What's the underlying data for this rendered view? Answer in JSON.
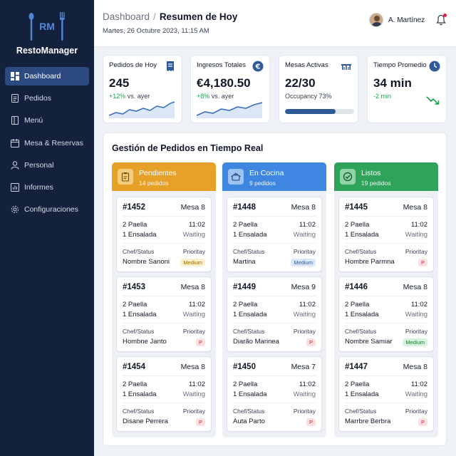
{
  "app": {
    "logo_initials": "RM",
    "name": "RestoManager"
  },
  "sidebar": {
    "items": [
      {
        "label": "Dashboard",
        "icon": "dashboard-icon",
        "active": true
      },
      {
        "label": "Pedidos",
        "icon": "orders-icon",
        "active": false
      },
      {
        "label": "Menú",
        "icon": "menu-book-icon",
        "active": false
      },
      {
        "label": "Mesa & Reservas",
        "icon": "calendar-icon",
        "active": false
      },
      {
        "label": "Personal",
        "icon": "user-icon",
        "active": false
      },
      {
        "label": "Informes",
        "icon": "chart-icon",
        "active": false
      },
      {
        "label": "Configuraciones",
        "icon": "gear-icon",
        "active": false
      }
    ]
  },
  "header": {
    "breadcrumb_root": "Dashboard",
    "breadcrumb_sep": "/",
    "breadcrumb_current": "Resumen de Hoy",
    "date": "Martes, 26 Octubre 2023, 11:15 AM",
    "user_name": "A. Martínez"
  },
  "kpis": {
    "orders": {
      "title": "Pedidos de Hoy",
      "value": "245",
      "delta": "+12%",
      "delta_note": "vs. ayer"
    },
    "revenue": {
      "title": "Ingresos Totales",
      "value": "€4,180.50",
      "delta": "+8%",
      "delta_note": "vs. ayer"
    },
    "tables": {
      "title": "Mesas Activas",
      "value": "22/30",
      "note": "Occupancy 73%",
      "occupancy": 0.73
    },
    "avgtime": {
      "title": "Tiempo Promedio",
      "value": "34 min",
      "delta": "-2 min"
    }
  },
  "orders_panel": {
    "title": "Gestión de Pedidos en Tiempo Real",
    "chef_label": "Chef/Status",
    "priority_label": "Prioritay",
    "columns": [
      {
        "name": "Pendientes",
        "count": "14 pedidos",
        "color": "#e8a128",
        "cards": [
          {
            "id": "#1452",
            "mesa": "Mesa 8",
            "item1": "2 Paella",
            "item2": "1 Ensalada",
            "time": "11:02",
            "status": "Waiting",
            "chef": "Nombre Sanoni",
            "badge": "Medium",
            "badge_class": "b-medium-y"
          },
          {
            "id": "#1453",
            "mesa": "Mesa 8",
            "item1": "2 Paella",
            "item2": "1 Ensalada",
            "time": "11:02",
            "status": "Waiting",
            "chef": "Hombne Janto",
            "badge": "P",
            "badge_class": "b-p"
          },
          {
            "id": "#1454",
            "mesa": "Mesa 8",
            "item1": "2 Paella",
            "item2": "1 Ensalada",
            "time": "11:02",
            "status": "Waiting",
            "chef": "Disane Perrera",
            "badge": "P",
            "badge_class": "b-p"
          }
        ]
      },
      {
        "name": "En Cocina",
        "count": "9 pedidos",
        "color": "#3f86e0",
        "cards": [
          {
            "id": "#1448",
            "mesa": "Mesa 8",
            "item1": "2 Paella",
            "item2": "1 Ensalada",
            "time": "11:02",
            "status": "Waiting",
            "chef": "Martina",
            "badge": "Medium",
            "badge_class": "b-medium-b"
          },
          {
            "id": "#1449",
            "mesa": "Mesa 9",
            "item1": "2 Paella",
            "item2": "1 Ensalada",
            "time": "11:02",
            "status": "Waiting",
            "chef": "Diarão Marinea",
            "badge": "P",
            "badge_class": "b-p"
          },
          {
            "id": "#1450",
            "mesa": "Mesa 7",
            "item1": "2 Paella",
            "item2": "1 Ensalada",
            "time": "11:02",
            "status": "Waiting",
            "chef": "Auta Parto",
            "badge": "P",
            "badge_class": "b-p"
          }
        ]
      },
      {
        "name": "Listos",
        "count": "19 pedidos",
        "color": "#2fa35a",
        "cards": [
          {
            "id": "#1445",
            "mesa": "Mesa 8",
            "item1": "2 Paella",
            "item2": "1 Ensalada",
            "time": "11:02",
            "status": "Waiting",
            "chef": "Hombre Parmna",
            "badge": "P",
            "badge_class": "b-p"
          },
          {
            "id": "#1446",
            "mesa": "Mesa 8",
            "item1": "2 Paella",
            "item2": "1 Ensalada",
            "time": "11:02",
            "status": "Waiting",
            "chef": "Nombre Samiar",
            "badge": "Medium",
            "badge_class": "b-medium-g"
          },
          {
            "id": "#1447",
            "mesa": "Mesa 8",
            "item1": "2 Paella",
            "item2": "1 Ensalada",
            "time": "11:02",
            "status": "Waiting",
            "chef": "Marrbre Berbra",
            "badge": "P",
            "badge_class": "b-p"
          }
        ]
      }
    ]
  }
}
